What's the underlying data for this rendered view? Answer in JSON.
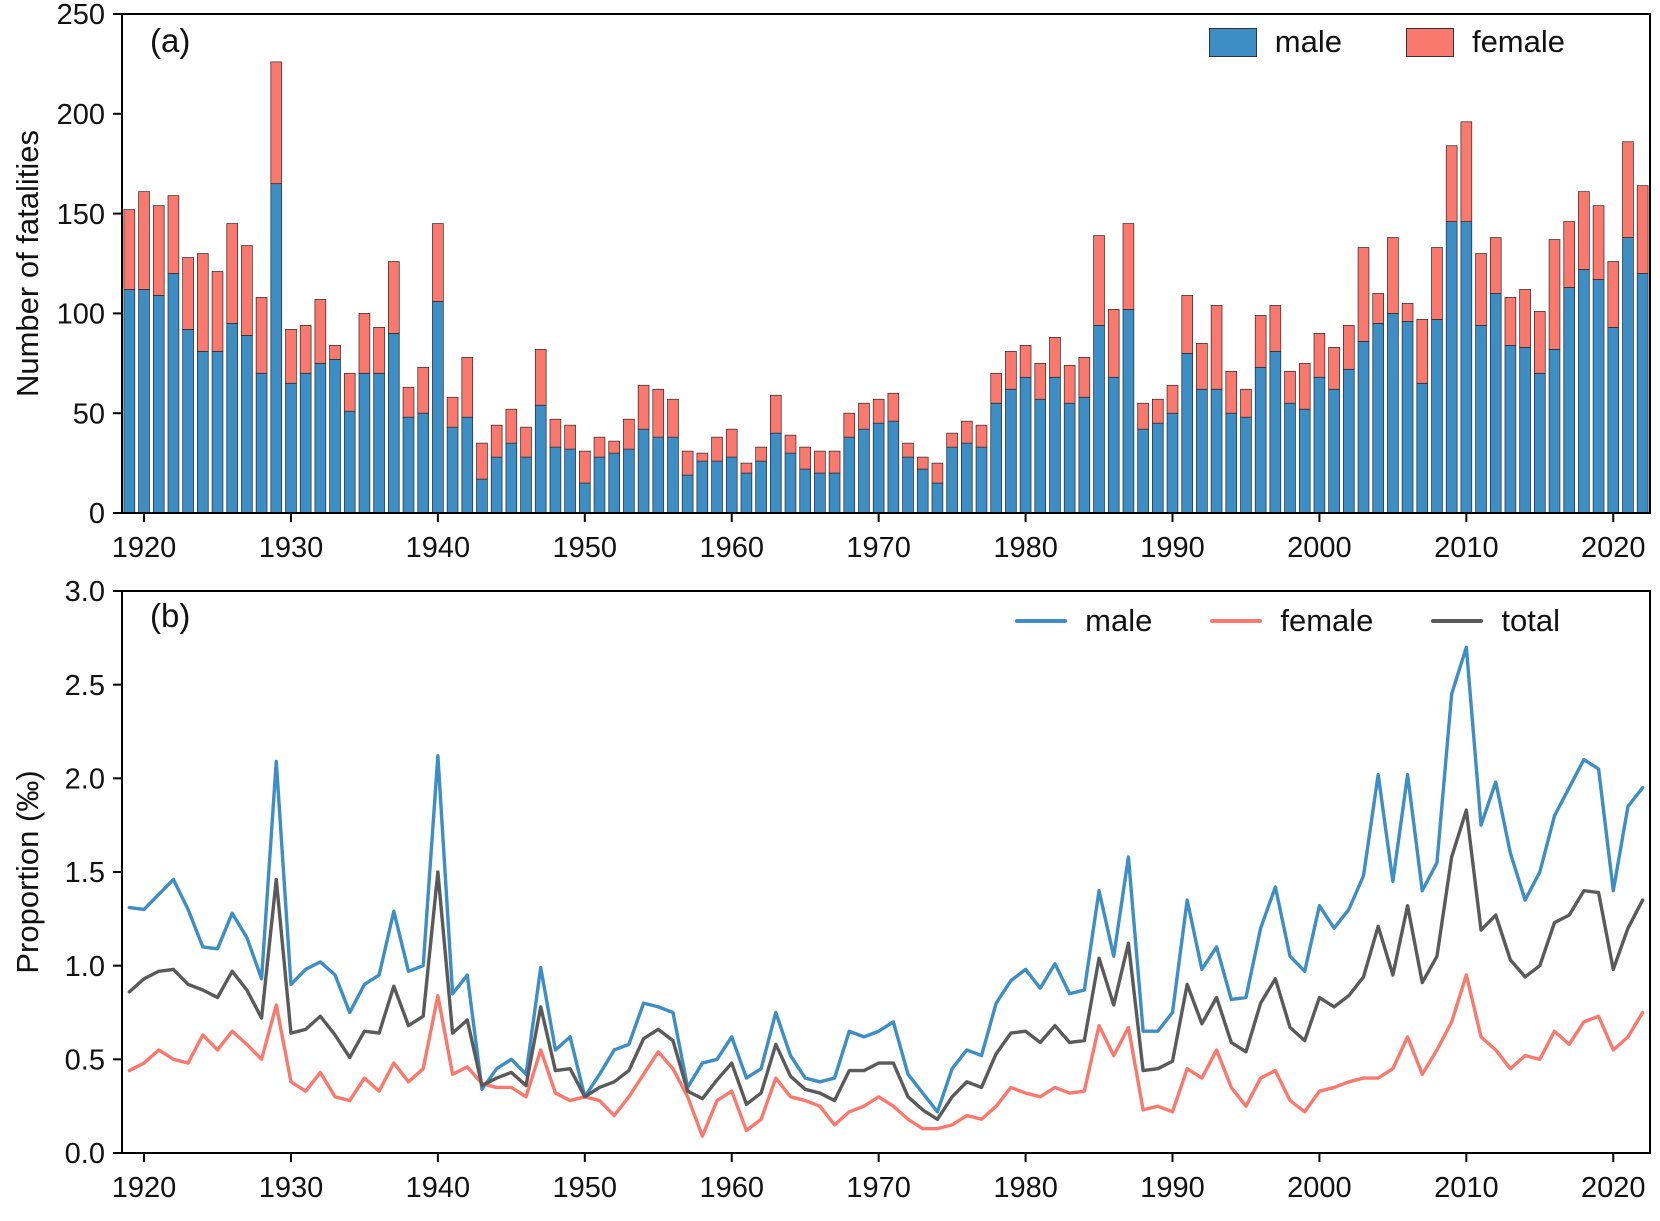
{
  "figure": {
    "panel_a_label": "(a)",
    "panel_b_label": "(b)",
    "colors": {
      "male": "#3d8ec4",
      "female": "#fa796e",
      "total": "#5a5a5a",
      "axis": "#000000"
    }
  },
  "chart_data": [
    {
      "type": "bar",
      "stacked": true,
      "title": "(a)",
      "xlabel": "",
      "ylabel": "Number of fatalities",
      "ylim": [
        0,
        250
      ],
      "ytick_values": [
        0,
        50,
        100,
        150,
        200,
        250
      ],
      "ytick_labels": [
        "0",
        "50",
        "100",
        "150",
        "200",
        "250"
      ],
      "xtick_values": [
        1920,
        1930,
        1940,
        1950,
        1960,
        1970,
        1980,
        1990,
        2000,
        2010,
        2020
      ],
      "xtick_labels": [
        "1920",
        "1930",
        "1940",
        "1950",
        "1960",
        "1970",
        "1980",
        "1990",
        "2000",
        "2010",
        "2020"
      ],
      "legend_position": "upper right",
      "grid": false,
      "categories": [
        1919,
        1920,
        1921,
        1922,
        1923,
        1924,
        1925,
        1926,
        1927,
        1928,
        1929,
        1930,
        1931,
        1932,
        1933,
        1934,
        1935,
        1936,
        1937,
        1938,
        1939,
        1940,
        1941,
        1942,
        1943,
        1944,
        1945,
        1946,
        1947,
        1948,
        1949,
        1950,
        1951,
        1952,
        1953,
        1954,
        1955,
        1956,
        1957,
        1958,
        1959,
        1960,
        1961,
        1962,
        1963,
        1964,
        1965,
        1966,
        1967,
        1968,
        1969,
        1970,
        1971,
        1972,
        1973,
        1974,
        1975,
        1976,
        1977,
        1978,
        1979,
        1980,
        1981,
        1982,
        1983,
        1984,
        1985,
        1986,
        1987,
        1988,
        1989,
        1990,
        1991,
        1992,
        1993,
        1994,
        1995,
        1996,
        1997,
        1998,
        1999,
        2000,
        2001,
        2002,
        2003,
        2004,
        2005,
        2006,
        2007,
        2008,
        2009,
        2010,
        2011,
        2012,
        2013,
        2014,
        2015,
        2016,
        2017,
        2018,
        2019,
        2020,
        2021,
        2022
      ],
      "series": [
        {
          "name": "male",
          "color": "#3d8ec4",
          "values": [
            112,
            112,
            109,
            120,
            92,
            81,
            81,
            95,
            89,
            70,
            165,
            65,
            70,
            75,
            77,
            51,
            70,
            70,
            90,
            48,
            50,
            106,
            43,
            48,
            17,
            28,
            35,
            28,
            54,
            33,
            32,
            15,
            28,
            30,
            32,
            42,
            38,
            38,
            19,
            26,
            26,
            28,
            20,
            26,
            40,
            30,
            22,
            20,
            20,
            38,
            42,
            45,
            46,
            28,
            22,
            15,
            33,
            35,
            33,
            55,
            62,
            68,
            57,
            68,
            55,
            58,
            94,
            68,
            102,
            42,
            45,
            50,
            80,
            62,
            62,
            50,
            48,
            73,
            81,
            55,
            52,
            68,
            62,
            72,
            86,
            95,
            100,
            96,
            65,
            97,
            146,
            146,
            94,
            110,
            84,
            83,
            70,
            82,
            113,
            122,
            117,
            93,
            138,
            120
          ]
        },
        {
          "name": "female",
          "color": "#fa796e",
          "values": [
            40,
            49,
            45,
            39,
            36,
            49,
            40,
            50,
            45,
            38,
            61,
            27,
            24,
            32,
            7,
            19,
            30,
            23,
            36,
            15,
            23,
            39,
            15,
            30,
            18,
            16,
            17,
            15,
            28,
            14,
            12,
            16,
            10,
            6,
            15,
            22,
            24,
            19,
            12,
            4,
            12,
            14,
            5,
            7,
            19,
            9,
            11,
            11,
            11,
            12,
            13,
            12,
            14,
            7,
            6,
            10,
            7,
            11,
            11,
            15,
            19,
            16,
            18,
            20,
            19,
            20,
            45,
            34,
            43,
            13,
            12,
            14,
            29,
            23,
            42,
            21,
            14,
            26,
            23,
            16,
            23,
            22,
            21,
            22,
            47,
            15,
            38,
            9,
            32,
            36,
            38,
            50,
            36,
            28,
            24,
            29,
            31,
            55,
            33,
            39,
            37,
            33,
            48,
            44
          ]
        }
      ]
    },
    {
      "type": "line",
      "title": "(b)",
      "xlabel": "",
      "ylabel": "Proportion (‰)",
      "ylim": [
        0,
        3.0
      ],
      "ytick_values": [
        0,
        0.5,
        1.0,
        1.5,
        2.0,
        2.5,
        3.0
      ],
      "ytick_labels": [
        "0.0",
        "0.5",
        "1.0",
        "1.5",
        "2.0",
        "2.5",
        "3.0"
      ],
      "xtick_values": [
        1920,
        1930,
        1940,
        1950,
        1960,
        1970,
        1980,
        1990,
        2000,
        2010,
        2020
      ],
      "xtick_labels": [
        "1920",
        "1930",
        "1940",
        "1950",
        "1960",
        "1970",
        "1980",
        "1990",
        "2000",
        "2010",
        "2020"
      ],
      "legend_position": "upper right",
      "grid": false,
      "categories": [
        1919,
        1920,
        1921,
        1922,
        1923,
        1924,
        1925,
        1926,
        1927,
        1928,
        1929,
        1930,
        1931,
        1932,
        1933,
        1934,
        1935,
        1936,
        1937,
        1938,
        1939,
        1940,
        1941,
        1942,
        1943,
        1944,
        1945,
        1946,
        1947,
        1948,
        1949,
        1950,
        1951,
        1952,
        1953,
        1954,
        1955,
        1956,
        1957,
        1958,
        1959,
        1960,
        1961,
        1962,
        1963,
        1964,
        1965,
        1966,
        1967,
        1968,
        1969,
        1970,
        1971,
        1972,
        1973,
        1974,
        1975,
        1976,
        1977,
        1978,
        1979,
        1980,
        1981,
        1982,
        1983,
        1984,
        1985,
        1986,
        1987,
        1988,
        1989,
        1990,
        1991,
        1992,
        1993,
        1994,
        1995,
        1996,
        1997,
        1998,
        1999,
        2000,
        2001,
        2002,
        2003,
        2004,
        2005,
        2006,
        2007,
        2008,
        2009,
        2010,
        2011,
        2012,
        2013,
        2014,
        2015,
        2016,
        2017,
        2018,
        2019,
        2020,
        2021,
        2022
      ],
      "series": [
        {
          "name": "male",
          "color": "#3d8ec4",
          "values": [
            1.31,
            1.3,
            1.38,
            1.46,
            1.3,
            1.1,
            1.09,
            1.28,
            1.15,
            0.93,
            2.09,
            0.9,
            0.98,
            1.02,
            0.95,
            0.75,
            0.9,
            0.95,
            1.29,
            0.97,
            1.0,
            2.12,
            0.85,
            0.95,
            0.34,
            0.45,
            0.5,
            0.42,
            0.99,
            0.55,
            0.62,
            0.3,
            0.42,
            0.55,
            0.58,
            0.8,
            0.78,
            0.75,
            0.35,
            0.48,
            0.5,
            0.62,
            0.4,
            0.45,
            0.75,
            0.52,
            0.4,
            0.38,
            0.4,
            0.65,
            0.62,
            0.65,
            0.7,
            0.42,
            0.32,
            0.22,
            0.45,
            0.55,
            0.52,
            0.8,
            0.92,
            0.98,
            0.88,
            1.01,
            0.85,
            0.87,
            1.4,
            1.05,
            1.58,
            0.65,
            0.65,
            0.75,
            1.35,
            0.98,
            1.1,
            0.82,
            0.83,
            1.2,
            1.42,
            1.05,
            0.97,
            1.32,
            1.2,
            1.3,
            1.48,
            2.02,
            1.45,
            2.02,
            1.4,
            1.55,
            2.45,
            2.7,
            1.75,
            1.98,
            1.6,
            1.35,
            1.5,
            1.8,
            1.95,
            2.1,
            2.05,
            1.4,
            1.85,
            1.95
          ]
        },
        {
          "name": "female",
          "color": "#fa796e",
          "values": [
            0.44,
            0.48,
            0.55,
            0.5,
            0.48,
            0.63,
            0.55,
            0.65,
            0.58,
            0.5,
            0.79,
            0.38,
            0.33,
            0.43,
            0.3,
            0.28,
            0.4,
            0.33,
            0.48,
            0.38,
            0.45,
            0.84,
            0.42,
            0.46,
            0.37,
            0.35,
            0.35,
            0.3,
            0.55,
            0.32,
            0.28,
            0.3,
            0.28,
            0.2,
            0.3,
            0.42,
            0.54,
            0.45,
            0.3,
            0.09,
            0.28,
            0.33,
            0.12,
            0.18,
            0.4,
            0.3,
            0.28,
            0.25,
            0.15,
            0.22,
            0.25,
            0.3,
            0.25,
            0.18,
            0.13,
            0.13,
            0.15,
            0.2,
            0.18,
            0.25,
            0.35,
            0.32,
            0.3,
            0.35,
            0.32,
            0.33,
            0.68,
            0.52,
            0.67,
            0.23,
            0.25,
            0.22,
            0.45,
            0.4,
            0.55,
            0.35,
            0.25,
            0.4,
            0.44,
            0.28,
            0.22,
            0.33,
            0.35,
            0.38,
            0.4,
            0.4,
            0.45,
            0.62,
            0.42,
            0.55,
            0.7,
            0.95,
            0.62,
            0.55,
            0.45,
            0.52,
            0.5,
            0.65,
            0.58,
            0.7,
            0.73,
            0.55,
            0.62,
            0.75
          ]
        },
        {
          "name": "total",
          "color": "#5a5a5a",
          "values": [
            0.86,
            0.93,
            0.97,
            0.98,
            0.9,
            0.87,
            0.83,
            0.97,
            0.87,
            0.72,
            1.46,
            0.64,
            0.66,
            0.73,
            0.63,
            0.51,
            0.65,
            0.64,
            0.89,
            0.68,
            0.73,
            1.5,
            0.64,
            0.71,
            0.36,
            0.4,
            0.43,
            0.36,
            0.78,
            0.44,
            0.45,
            0.3,
            0.35,
            0.38,
            0.44,
            0.61,
            0.66,
            0.6,
            0.33,
            0.29,
            0.39,
            0.48,
            0.26,
            0.32,
            0.58,
            0.41,
            0.34,
            0.32,
            0.28,
            0.44,
            0.44,
            0.48,
            0.48,
            0.3,
            0.23,
            0.18,
            0.3,
            0.38,
            0.35,
            0.53,
            0.64,
            0.65,
            0.59,
            0.68,
            0.59,
            0.6,
            1.04,
            0.79,
            1.12,
            0.44,
            0.45,
            0.49,
            0.9,
            0.69,
            0.83,
            0.59,
            0.54,
            0.8,
            0.93,
            0.67,
            0.6,
            0.83,
            0.78,
            0.84,
            0.94,
            1.21,
            0.95,
            1.32,
            0.91,
            1.05,
            1.58,
            1.83,
            1.19,
            1.27,
            1.03,
            0.94,
            1.0,
            1.23,
            1.27,
            1.4,
            1.39,
            0.98,
            1.2,
            1.35
          ]
        }
      ]
    }
  ]
}
